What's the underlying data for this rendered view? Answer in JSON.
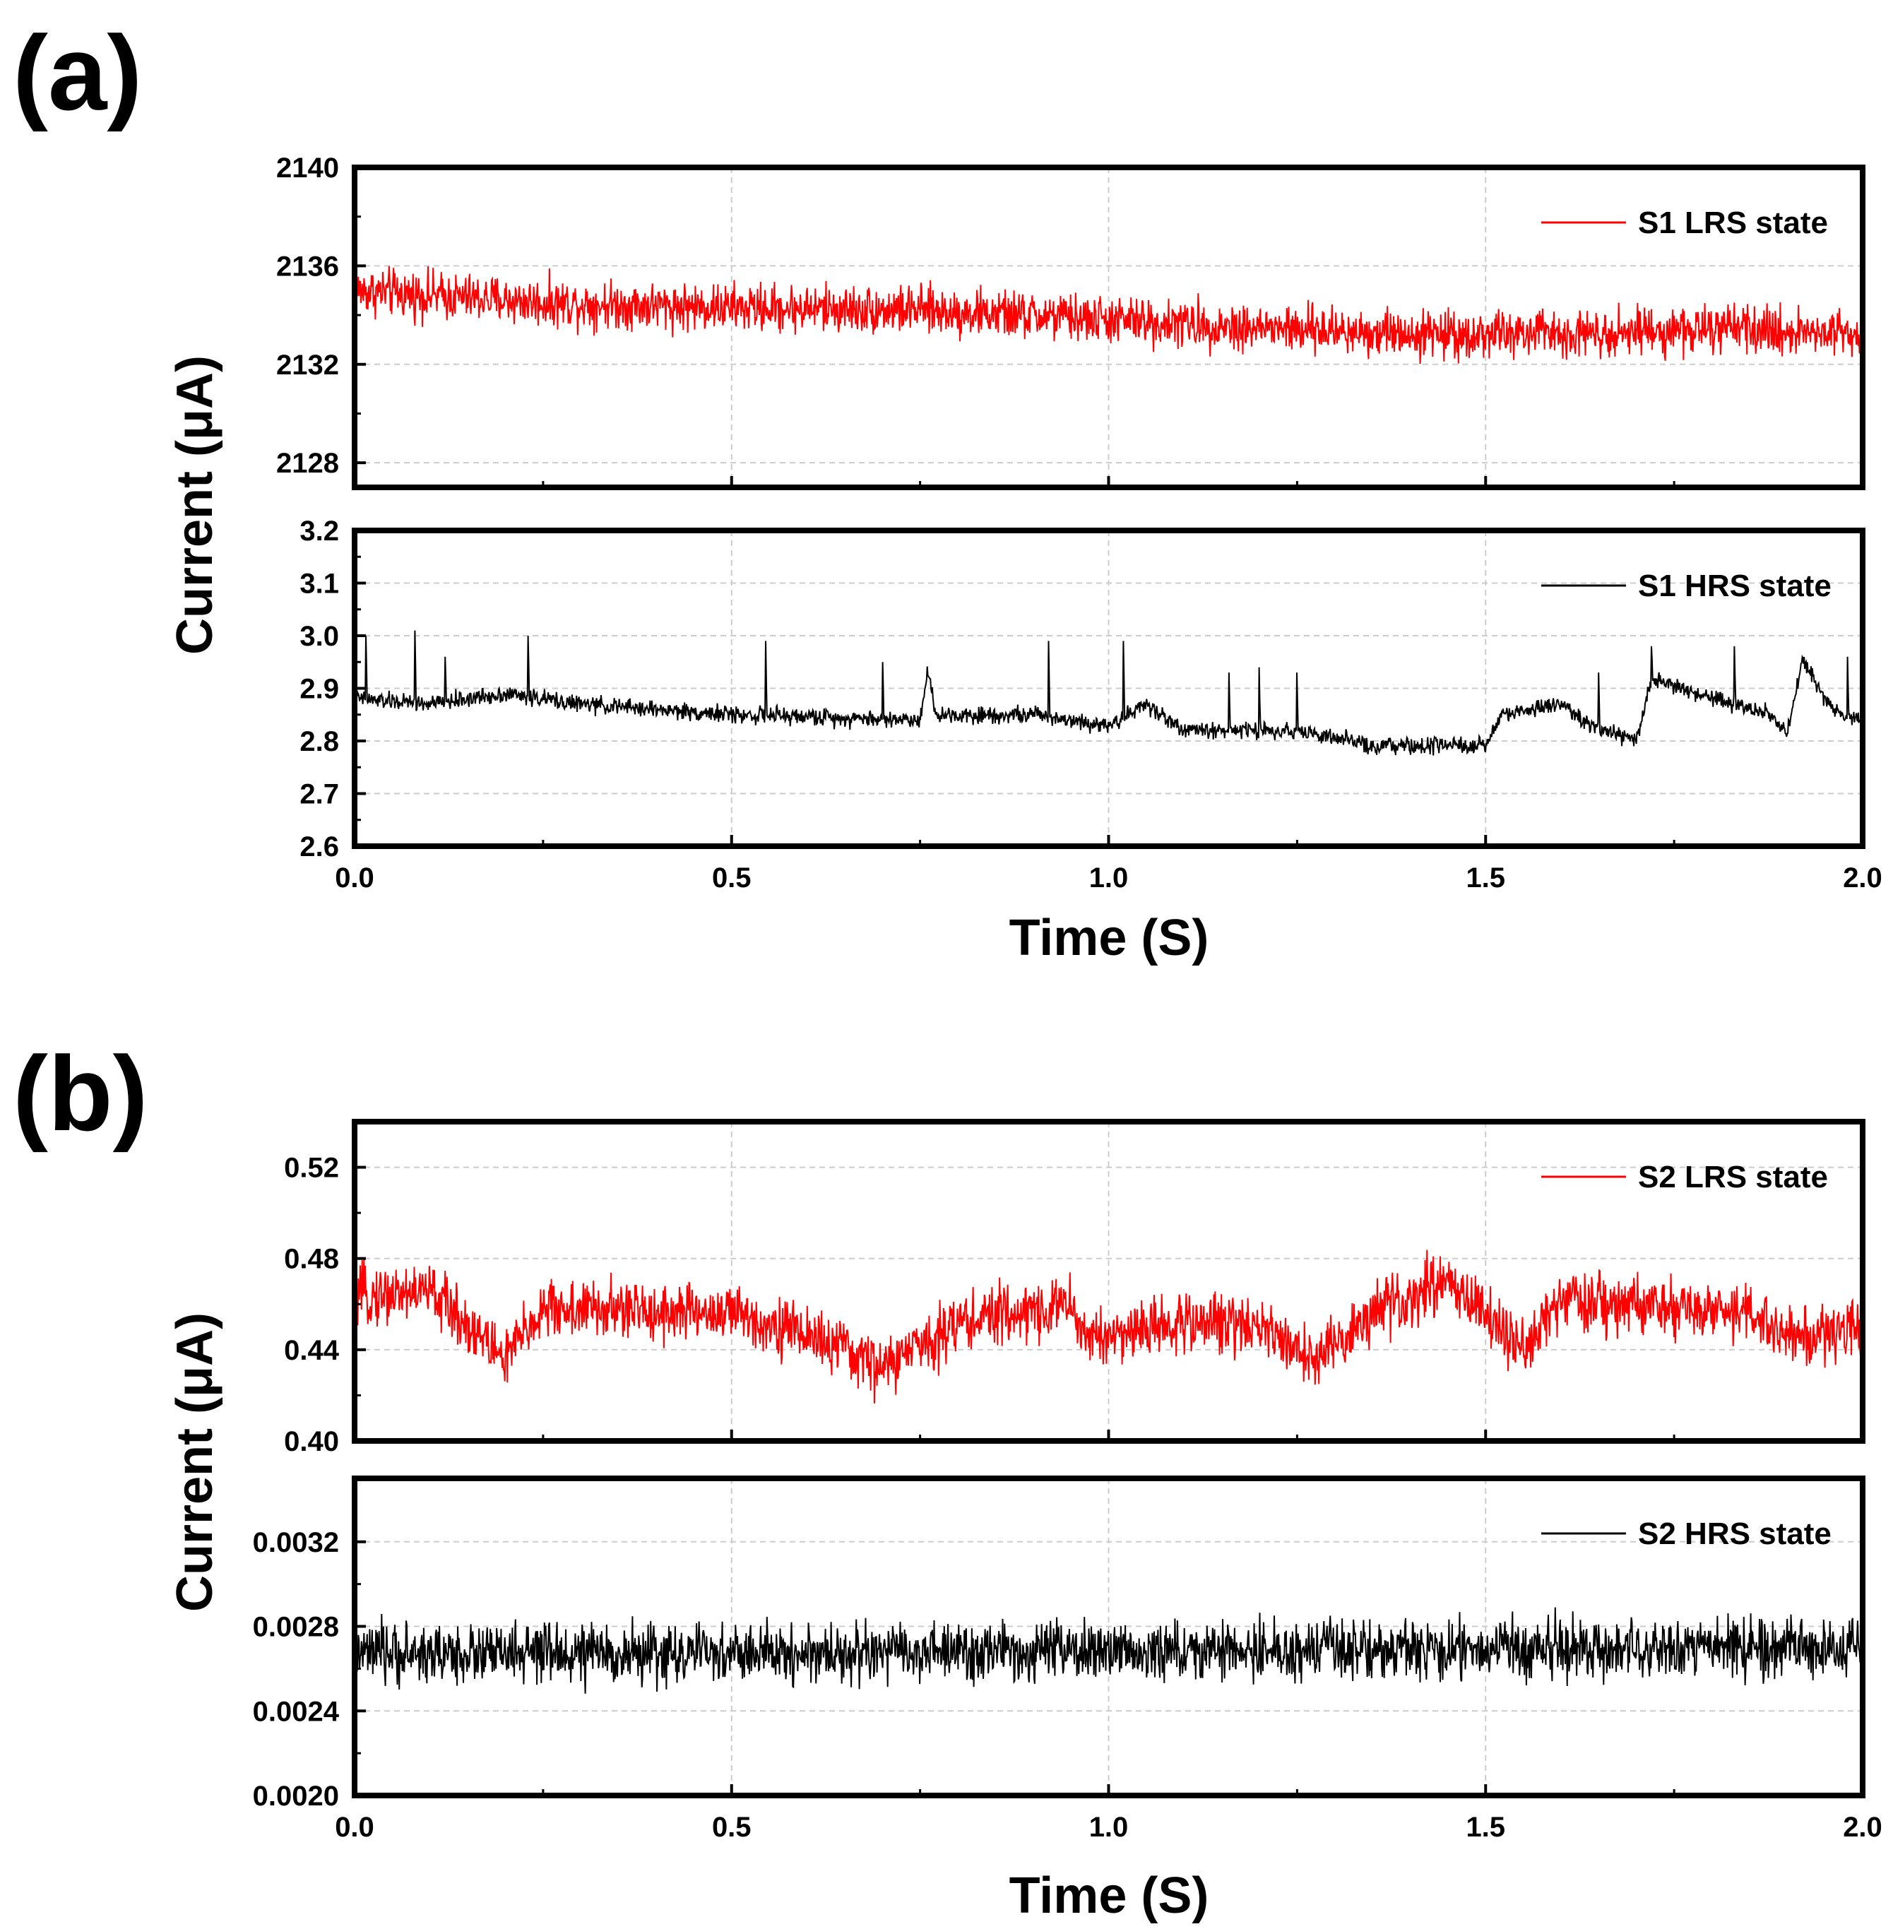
{
  "panels": [
    {
      "label": "(a)",
      "x_title": "Time (S)",
      "y_title": "Current (μA)"
    },
    {
      "label": "(b)",
      "x_title": "Time (S)",
      "y_title": "Current (μA)"
    }
  ],
  "colors": {
    "red": "#ff0000",
    "black": "#000000",
    "grid": "#cccccc",
    "axis": "#000000"
  },
  "chart_data": [
    {
      "type": "line",
      "panel": "(a)",
      "series": [
        {
          "name": "S1 LRS state",
          "color": "#ff0000",
          "trend": [
            [
              0.0,
              2135.0
            ],
            [
              0.25,
              2134.5
            ],
            [
              0.5,
              2134.3
            ],
            [
              0.75,
              2134.2
            ],
            [
              1.0,
              2133.8
            ],
            [
              1.25,
              2133.4
            ],
            [
              1.5,
              2133.2
            ],
            [
              1.75,
              2133.4
            ],
            [
              2.0,
              2133.3
            ]
          ],
          "noise": 0.9
        }
      ],
      "xlim": [
        0.0,
        2.0
      ],
      "ylim": [
        2127,
        2140
      ],
      "yticks": [
        2128,
        2132,
        2136,
        2140
      ],
      "ytick_labels": [
        "2128",
        "2132",
        "2136",
        "2140"
      ],
      "xticks": [
        0.0,
        0.5,
        1.0,
        1.5,
        2.0
      ],
      "xtick_labels": [
        "0.0",
        "0.5",
        "1.0",
        "1.5",
        "2.0"
      ],
      "grid": true,
      "show_xtick_labels": false,
      "legend": "top-right"
    },
    {
      "type": "line",
      "panel": "(a)",
      "series": [
        {
          "name": "S1 HRS state",
          "color": "#000000",
          "trend": [
            [
              0.0,
              2.88
            ],
            [
              0.1,
              2.87
            ],
            [
              0.2,
              2.89
            ],
            [
              0.3,
              2.87
            ],
            [
              0.5,
              2.85
            ],
            [
              0.75,
              2.84
            ],
            [
              0.76,
              2.94
            ],
            [
              0.77,
              2.85
            ],
            [
              0.9,
              2.85
            ],
            [
              1.0,
              2.83
            ],
            [
              1.05,
              2.87
            ],
            [
              1.1,
              2.82
            ],
            [
              1.25,
              2.82
            ],
            [
              1.35,
              2.79
            ],
            [
              1.5,
              2.79
            ],
            [
              1.52,
              2.85
            ],
            [
              1.6,
              2.87
            ],
            [
              1.65,
              2.82
            ],
            [
              1.7,
              2.8
            ],
            [
              1.72,
              2.92
            ],
            [
              1.8,
              2.88
            ],
            [
              1.88,
              2.85
            ],
            [
              1.9,
              2.81
            ],
            [
              1.92,
              2.95
            ],
            [
              1.96,
              2.86
            ],
            [
              2.0,
              2.84
            ]
          ],
          "noise": 0.015,
          "spikes": [
            [
              0.015,
              3.0
            ],
            [
              0.08,
              3.01
            ],
            [
              0.12,
              2.96
            ],
            [
              0.23,
              3.0
            ],
            [
              0.545,
              2.99
            ],
            [
              0.7,
              2.95
            ],
            [
              0.92,
              2.99
            ],
            [
              1.02,
              2.99
            ],
            [
              1.16,
              2.93
            ],
            [
              1.2,
              2.94
            ],
            [
              1.25,
              2.93
            ],
            [
              1.65,
              2.93
            ],
            [
              1.72,
              2.98
            ],
            [
              1.83,
              2.98
            ],
            [
              1.98,
              2.96
            ]
          ]
        }
      ],
      "xlim": [
        0.0,
        2.0
      ],
      "ylim": [
        2.6,
        3.2
      ],
      "yticks": [
        2.6,
        2.7,
        2.8,
        2.9,
        3.0,
        3.1,
        3.2
      ],
      "ytick_labels": [
        "2.6",
        "2.7",
        "2.8",
        "2.9",
        "3.0",
        "3.1",
        "3.2"
      ],
      "xticks": [
        0.0,
        0.5,
        1.0,
        1.5,
        2.0
      ],
      "xtick_labels": [
        "0.0",
        "0.5",
        "1.0",
        "1.5",
        "2.0"
      ],
      "grid": true,
      "show_xtick_labels": true,
      "xlabel": "Time (S)",
      "legend": "top-right"
    },
    {
      "type": "line",
      "panel": "(b)",
      "series": [
        {
          "name": "S2 LRS state",
          "color": "#ff0000",
          "trend": [
            [
              0.0,
              0.463
            ],
            [
              0.1,
              0.466
            ],
            [
              0.2,
              0.436
            ],
            [
              0.25,
              0.458
            ],
            [
              0.5,
              0.456
            ],
            [
              0.6,
              0.447
            ],
            [
              0.7,
              0.432
            ],
            [
              0.8,
              0.452
            ],
            [
              0.95,
              0.46
            ],
            [
              0.97,
              0.445
            ],
            [
              1.1,
              0.452
            ],
            [
              1.2,
              0.452
            ],
            [
              1.27,
              0.435
            ],
            [
              1.35,
              0.455
            ],
            [
              1.45,
              0.472
            ],
            [
              1.55,
              0.438
            ],
            [
              1.6,
              0.462
            ],
            [
              1.7,
              0.458
            ],
            [
              1.85,
              0.456
            ],
            [
              1.9,
              0.445
            ],
            [
              2.0,
              0.45
            ]
          ],
          "noise": 0.012
        }
      ],
      "xlim": [
        0.0,
        2.0
      ],
      "ylim": [
        0.4,
        0.54
      ],
      "yticks": [
        0.4,
        0.44,
        0.48,
        0.52
      ],
      "ytick_labels": [
        "0.40",
        "0.44",
        "0.48",
        "0.52"
      ],
      "xticks": [
        0.0,
        0.5,
        1.0,
        1.5,
        2.0
      ],
      "xtick_labels": [
        "0.0",
        "0.5",
        "1.0",
        "1.5",
        "2.0"
      ],
      "grid": true,
      "show_xtick_labels": false,
      "legend": "top-right"
    },
    {
      "type": "line",
      "panel": "(b)",
      "series": [
        {
          "name": "S2 HRS state",
          "color": "#000000",
          "trend": [
            [
              0.0,
              0.00267
            ],
            [
              0.5,
              0.00267
            ],
            [
              1.0,
              0.00268
            ],
            [
              1.5,
              0.00269
            ],
            [
              2.0,
              0.0027
            ]
          ],
          "noise": 0.00013
        }
      ],
      "xlim": [
        0.0,
        2.0
      ],
      "ylim": [
        0.002,
        0.0035
      ],
      "yticks": [
        0.002,
        0.0024,
        0.0028,
        0.0032
      ],
      "ytick_labels": [
        "0.0020",
        "0.0024",
        "0.0028",
        "0.0032"
      ],
      "xticks": [
        0.0,
        0.5,
        1.0,
        1.5,
        2.0
      ],
      "xtick_labels": [
        "0.0",
        "0.5",
        "1.0",
        "1.5",
        "2.0"
      ],
      "grid": true,
      "show_xtick_labels": true,
      "xlabel": "Time (S)",
      "legend": "top-right"
    }
  ]
}
